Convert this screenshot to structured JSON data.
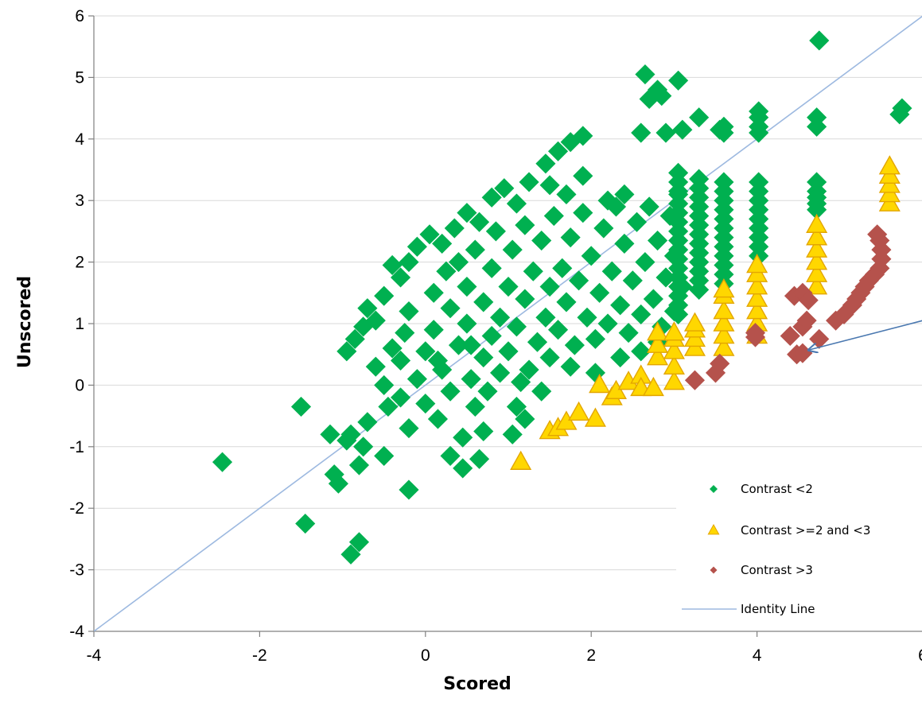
{
  "chart_data": {
    "type": "scatter",
    "xlabel": "Scored",
    "ylabel": "Unscored",
    "xlim": [
      -4,
      6
    ],
    "ylim": [
      -4,
      6
    ],
    "x_ticks": [
      "-4",
      "-2",
      "0",
      "2",
      "4",
      "6"
    ],
    "y_ticks": [
      "6",
      "5",
      "4",
      "3",
      "2",
      "1",
      "0",
      "-1",
      "-2",
      "-3",
      "-4"
    ],
    "grid": "horizontal",
    "legend_position": "bottom-right",
    "colors": {
      "green": "#00B050",
      "yellow": "#FFD700",
      "yellow_stroke": "#E3A600",
      "red": "#B5524C",
      "identity": "#9DB9E0",
      "arrow": "#4A78B0",
      "grid": "#D9D9D9"
    },
    "series": [
      {
        "name": "Contrast <2",
        "marker": "diamond",
        "color": "#00B050",
        "points": [
          [
            -2.45,
            -1.25
          ],
          [
            -1.5,
            -0.35
          ],
          [
            -1.45,
            -2.25
          ],
          [
            -1.15,
            -0.8
          ],
          [
            -1.1,
            -1.45
          ],
          [
            -1.05,
            -1.6
          ],
          [
            -0.9,
            -2.75
          ],
          [
            -0.8,
            -2.55
          ],
          [
            -0.95,
            -0.9
          ],
          [
            -0.9,
            -0.8
          ],
          [
            -0.8,
            -1.3
          ],
          [
            -0.75,
            -1.0
          ],
          [
            -0.7,
            -0.6
          ],
          [
            -0.95,
            0.55
          ],
          [
            -0.85,
            0.75
          ],
          [
            -0.75,
            0.95
          ],
          [
            -0.7,
            1.25
          ],
          [
            -0.6,
            1.05
          ],
          [
            -0.5,
            1.45
          ],
          [
            -0.4,
            1.95
          ],
          [
            -0.3,
            1.75
          ],
          [
            -0.2,
            2.0
          ],
          [
            -0.1,
            2.25
          ],
          [
            0.05,
            2.45
          ],
          [
            0.2,
            2.3
          ],
          [
            0.35,
            2.55
          ],
          [
            0.5,
            2.8
          ],
          [
            0.65,
            2.65
          ],
          [
            0.8,
            3.05
          ],
          [
            0.95,
            3.2
          ],
          [
            1.1,
            2.95
          ],
          [
            1.25,
            3.3
          ],
          [
            1.45,
            3.6
          ],
          [
            1.6,
            3.8
          ],
          [
            1.75,
            3.95
          ],
          [
            1.9,
            4.05
          ],
          [
            1.5,
            3.25
          ],
          [
            1.7,
            3.1
          ],
          [
            1.9,
            3.4
          ],
          [
            2.2,
            3.0
          ],
          [
            2.4,
            3.1
          ],
          [
            2.6,
            4.1
          ],
          [
            2.7,
            4.65
          ],
          [
            2.8,
            4.8
          ],
          [
            2.65,
            5.05
          ],
          [
            2.85,
            4.7
          ],
          [
            3.05,
            4.95
          ],
          [
            2.9,
            4.1
          ],
          [
            3.1,
            4.15
          ],
          [
            3.3,
            4.35
          ],
          [
            3.55,
            4.15
          ],
          [
            4.02,
            4.45
          ],
          [
            4.02,
            4.35
          ],
          [
            4.02,
            4.2
          ],
          [
            4.02,
            4.1
          ],
          [
            4.75,
            5.6
          ],
          [
            4.72,
            4.35
          ],
          [
            4.72,
            4.2
          ],
          [
            5.75,
            4.5
          ],
          [
            5.72,
            4.4
          ],
          [
            -0.6,
            0.3
          ],
          [
            -0.5,
            0.0
          ],
          [
            -0.45,
            -0.35
          ],
          [
            -0.4,
            0.6
          ],
          [
            -0.3,
            -0.2
          ],
          [
            -0.25,
            0.85
          ],
          [
            -0.2,
            1.2
          ],
          [
            -0.1,
            0.1
          ],
          [
            0.0,
            -0.3
          ],
          [
            0.0,
            0.55
          ],
          [
            0.1,
            0.9
          ],
          [
            0.1,
            1.5
          ],
          [
            0.15,
            -0.55
          ],
          [
            0.2,
            0.25
          ],
          [
            0.25,
            1.85
          ],
          [
            0.3,
            -0.1
          ],
          [
            0.3,
            1.25
          ],
          [
            0.4,
            0.65
          ],
          [
            0.4,
            2.0
          ],
          [
            0.45,
            -0.85
          ],
          [
            0.5,
            1.0
          ],
          [
            0.5,
            1.6
          ],
          [
            0.55,
            0.1
          ],
          [
            0.6,
            -0.35
          ],
          [
            0.6,
            2.2
          ],
          [
            0.7,
            0.45
          ],
          [
            0.7,
            1.35
          ],
          [
            0.75,
            -0.1
          ],
          [
            0.8,
            0.8
          ],
          [
            0.8,
            1.9
          ],
          [
            0.85,
            2.5
          ],
          [
            0.9,
            0.2
          ],
          [
            0.9,
            1.1
          ],
          [
            1.0,
            1.6
          ],
          [
            1.0,
            0.55
          ],
          [
            1.05,
            2.2
          ],
          [
            1.1,
            -0.35
          ],
          [
            1.1,
            0.95
          ],
          [
            1.2,
            1.4
          ],
          [
            1.2,
            2.6
          ],
          [
            1.25,
            0.25
          ],
          [
            1.3,
            1.85
          ],
          [
            1.35,
            0.7
          ],
          [
            1.4,
            2.35
          ],
          [
            1.45,
            1.1
          ],
          [
            1.5,
            0.45
          ],
          [
            1.5,
            1.6
          ],
          [
            1.55,
            2.75
          ],
          [
            1.6,
            0.9
          ],
          [
            1.65,
            1.9
          ],
          [
            1.7,
            1.35
          ],
          [
            1.75,
            2.4
          ],
          [
            1.8,
            0.65
          ],
          [
            1.85,
            1.7
          ],
          [
            1.9,
            2.8
          ],
          [
            1.95,
            1.1
          ],
          [
            2.0,
            2.1
          ],
          [
            2.05,
            0.75
          ],
          [
            2.1,
            1.5
          ],
          [
            2.15,
            2.55
          ],
          [
            2.2,
            1.0
          ],
          [
            2.25,
            1.85
          ],
          [
            2.3,
            2.9
          ],
          [
            2.35,
            1.3
          ],
          [
            2.4,
            2.3
          ],
          [
            2.45,
            0.85
          ],
          [
            2.5,
            1.7
          ],
          [
            2.55,
            2.65
          ],
          [
            2.6,
            1.15
          ],
          [
            2.65,
            2.0
          ],
          [
            2.7,
            2.9
          ],
          [
            2.75,
            1.4
          ],
          [
            2.8,
            2.35
          ],
          [
            2.85,
            0.95
          ],
          [
            2.9,
            1.75
          ],
          [
            2.95,
            2.75
          ],
          [
            3.0,
            1.2
          ],
          [
            3.0,
            2.1
          ],
          [
            3.05,
            3.1
          ],
          [
            3.1,
            1.6
          ],
          [
            3.05,
            3.45
          ],
          [
            3.05,
            3.3
          ],
          [
            3.05,
            3.15
          ],
          [
            3.05,
            2.95
          ],
          [
            3.05,
            2.8
          ],
          [
            3.05,
            2.65
          ],
          [
            3.05,
            2.5
          ],
          [
            3.05,
            2.35
          ],
          [
            3.05,
            2.2
          ],
          [
            3.05,
            2.05
          ],
          [
            3.05,
            1.9
          ],
          [
            3.05,
            1.75
          ],
          [
            3.05,
            1.6
          ],
          [
            3.05,
            1.45
          ],
          [
            3.05,
            1.3
          ],
          [
            3.05,
            1.15
          ],
          [
            3.3,
            3.35
          ],
          [
            3.3,
            3.2
          ],
          [
            3.3,
            3.05
          ],
          [
            3.3,
            2.9
          ],
          [
            3.3,
            2.75
          ],
          [
            3.3,
            2.6
          ],
          [
            3.3,
            2.45
          ],
          [
            3.3,
            2.3
          ],
          [
            3.3,
            2.15
          ],
          [
            3.3,
            2.0
          ],
          [
            3.3,
            1.85
          ],
          [
            3.3,
            1.7
          ],
          [
            3.3,
            1.55
          ],
          [
            3.6,
            3.3
          ],
          [
            3.6,
            3.15
          ],
          [
            3.6,
            3.0
          ],
          [
            3.6,
            2.85
          ],
          [
            3.6,
            2.7
          ],
          [
            3.6,
            2.55
          ],
          [
            3.6,
            2.4
          ],
          [
            3.6,
            2.25
          ],
          [
            3.6,
            2.1
          ],
          [
            3.6,
            1.95
          ],
          [
            3.6,
            1.8
          ],
          [
            3.6,
            1.65
          ],
          [
            3.6,
            4.1
          ],
          [
            3.6,
            4.2
          ],
          [
            4.02,
            3.3
          ],
          [
            4.02,
            3.15
          ],
          [
            4.02,
            3.0
          ],
          [
            4.02,
            2.85
          ],
          [
            4.02,
            2.7
          ],
          [
            4.02,
            2.55
          ],
          [
            4.02,
            2.4
          ],
          [
            4.02,
            2.25
          ],
          [
            4.02,
            2.1
          ],
          [
            4.72,
            3.3
          ],
          [
            4.72,
            3.15
          ],
          [
            4.72,
            3.05
          ],
          [
            4.72,
            2.95
          ],
          [
            4.72,
            2.85
          ],
          [
            -0.3,
            0.4
          ],
          [
            0.15,
            0.4
          ],
          [
            0.55,
            0.65
          ],
          [
            1.15,
            0.05
          ],
          [
            1.4,
            -0.1
          ],
          [
            1.75,
            0.3
          ],
          [
            2.05,
            0.2
          ],
          [
            2.35,
            0.45
          ],
          [
            0.3,
            -1.15
          ],
          [
            0.45,
            -1.35
          ],
          [
            0.65,
            -1.2
          ],
          [
            -0.2,
            -0.7
          ],
          [
            -0.5,
            -1.15
          ],
          [
            1.2,
            -0.55
          ],
          [
            1.05,
            -0.8
          ],
          [
            -0.2,
            -1.7
          ],
          [
            0.7,
            -0.75
          ],
          [
            2.6,
            0.55
          ],
          [
            2.8,
            0.7
          ]
        ]
      },
      {
        "name": "Contrast >=2 and <3",
        "marker": "triangle",
        "color": "#FFD700",
        "points": [
          [
            1.15,
            -1.25
          ],
          [
            1.5,
            -0.75
          ],
          [
            1.6,
            -0.7
          ],
          [
            1.7,
            -0.6
          ],
          [
            1.85,
            -0.45
          ],
          [
            2.05,
            -0.55
          ],
          [
            2.1,
            0.0
          ],
          [
            2.25,
            -0.2
          ],
          [
            2.3,
            -0.1
          ],
          [
            2.45,
            0.05
          ],
          [
            2.6,
            0.15
          ],
          [
            2.6,
            -0.05
          ],
          [
            2.75,
            -0.05
          ],
          [
            2.8,
            0.45
          ],
          [
            2.8,
            0.65
          ],
          [
            2.8,
            0.85
          ],
          [
            3.0,
            0.05
          ],
          [
            3.0,
            0.3
          ],
          [
            3.0,
            0.55
          ],
          [
            3.0,
            0.75
          ],
          [
            3.0,
            0.85
          ],
          [
            3.25,
            0.6
          ],
          [
            3.25,
            0.75
          ],
          [
            3.25,
            0.9
          ],
          [
            3.25,
            1.0
          ],
          [
            3.6,
            0.6
          ],
          [
            3.6,
            0.8
          ],
          [
            3.6,
            1.0
          ],
          [
            3.6,
            1.2
          ],
          [
            3.6,
            1.45
          ],
          [
            3.6,
            1.55
          ],
          [
            4.0,
            0.8
          ],
          [
            4.0,
            1.0
          ],
          [
            4.0,
            1.2
          ],
          [
            4.0,
            1.4
          ],
          [
            4.0,
            1.6
          ],
          [
            4.0,
            1.8
          ],
          [
            4.0,
            1.95
          ],
          [
            4.72,
            1.6
          ],
          [
            4.72,
            1.8
          ],
          [
            4.72,
            2.0
          ],
          [
            4.72,
            2.2
          ],
          [
            4.72,
            2.4
          ],
          [
            4.72,
            2.6
          ],
          [
            5.6,
            2.95
          ],
          [
            5.6,
            3.1
          ],
          [
            5.6,
            3.25
          ],
          [
            5.6,
            3.4
          ],
          [
            5.6,
            3.55
          ]
        ]
      },
      {
        "name": "Contrast >3",
        "marker": "diamond",
        "color": "#B5524C",
        "points": [
          [
            3.25,
            0.08
          ],
          [
            3.5,
            0.2
          ],
          [
            3.55,
            0.35
          ],
          [
            3.98,
            0.85
          ],
          [
            3.98,
            0.78
          ],
          [
            4.4,
            0.8
          ],
          [
            4.48,
            0.5
          ],
          [
            4.55,
            0.52
          ],
          [
            4.55,
            0.95
          ],
          [
            4.6,
            1.05
          ],
          [
            4.45,
            1.45
          ],
          [
            4.55,
            1.5
          ],
          [
            4.62,
            1.38
          ],
          [
            4.75,
            0.75
          ],
          [
            4.95,
            1.05
          ],
          [
            5.05,
            1.15
          ],
          [
            5.15,
            1.3
          ],
          [
            5.2,
            1.4
          ],
          [
            5.25,
            1.5
          ],
          [
            5.3,
            1.6
          ],
          [
            5.35,
            1.7
          ],
          [
            5.42,
            1.8
          ],
          [
            5.48,
            1.9
          ],
          [
            5.5,
            2.05
          ],
          [
            5.5,
            2.2
          ],
          [
            5.48,
            2.35
          ],
          [
            5.45,
            2.45
          ]
        ]
      }
    ],
    "identity_line": {
      "name": "Identity Line",
      "from": [
        -4,
        -4
      ],
      "to": [
        6,
        6
      ]
    },
    "annotation_arrow": {
      "from": [
        6.0,
        1.05
      ],
      "to": [
        4.62,
        0.57
      ]
    }
  }
}
